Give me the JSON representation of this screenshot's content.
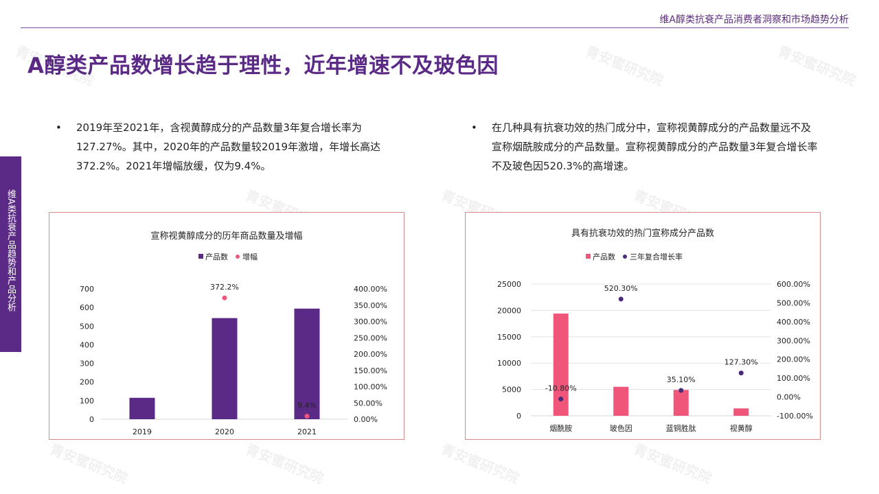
{
  "header": {
    "title": "维A醇类抗衰产品消费者洞察和市场趋势分析"
  },
  "page_title": "A醇类产品数增长趋于理性，近年增速不及玻色因",
  "side_tab": {
    "label": "维A类抗衰产品趋势和产品分析"
  },
  "bullets": {
    "left": "2019年至2021年，含视黄醇成分的产品数量3年复合增长率为127.27%。其中，2020年的产品数量较2019年激增，年增长高达372.2%。2021年增幅放缓，仅为9.4%。",
    "right": "在几种具有抗衰功效的热门成分中，宣称视黄醇成分的产品数量远不及宣称烟酰胺成分的产品数量。宣称视黄醇成分的产品数量3年复合增长率不及玻色因520.3%的高增速。",
    "marker": "•"
  },
  "watermark": "青安蜜研究院",
  "colors": {
    "accent": "#5b2a86",
    "pink": "#f0557a",
    "frame": "#d88a8a"
  },
  "chart_data": [
    {
      "type": "bar",
      "title": "宣称视黄醇成分的历年商品数量及增幅",
      "categories": [
        "2019",
        "2020",
        "2021"
      ],
      "series": [
        {
          "name": "产品数",
          "kind": "bar",
          "axis": "left",
          "values": [
            115,
            543,
            594
          ],
          "color": "#5b2a86"
        },
        {
          "name": "增幅",
          "kind": "scatter",
          "axis": "right",
          "values": [
            null,
            372.2,
            9.4
          ],
          "labels": [
            "",
            "372.2%",
            "9.4%"
          ],
          "color": "#f0557a"
        }
      ],
      "y_left": {
        "min": 0,
        "max": 700,
        "ticks": [
          "0",
          "100",
          "200",
          "300",
          "400",
          "500",
          "600",
          "700"
        ]
      },
      "y_right": {
        "min": 0,
        "max": 400,
        "ticks": [
          "0.00%",
          "50.00%",
          "100.00%",
          "150.00%",
          "200.00%",
          "250.00%",
          "300.00%",
          "350.00%",
          "400.00%"
        ]
      },
      "grid": false,
      "legend": "top"
    },
    {
      "type": "bar",
      "title": "具有抗衰功效的热门宣称成分产品数",
      "categories": [
        "烟酰胺",
        "玻色因",
        "蓝铜胜肽",
        "视黄醇"
      ],
      "series": [
        {
          "name": "产品数",
          "kind": "bar",
          "axis": "left",
          "values": [
            19400,
            5500,
            4900,
            1400
          ],
          "color": "#f0557a"
        },
        {
          "name": "三年复合增长率",
          "kind": "scatter",
          "axis": "right",
          "values": [
            -10.8,
            520.3,
            35.1,
            127.3
          ],
          "labels": [
            "-10.80%",
            "520.30%",
            "35.10%",
            "127.30%"
          ],
          "color": "#4a2a7a"
        }
      ],
      "y_left": {
        "min": 0,
        "max": 25000,
        "ticks": [
          "0",
          "5000",
          "10000",
          "15000",
          "20000",
          "25000"
        ]
      },
      "y_right": {
        "min": -100,
        "max": 600,
        "ticks": [
          "-100.00%",
          "0.00%",
          "100.00%",
          "200.00%",
          "300.00%",
          "400.00%",
          "500.00%",
          "600.00%"
        ]
      },
      "grid": true,
      "legend": "top"
    }
  ]
}
